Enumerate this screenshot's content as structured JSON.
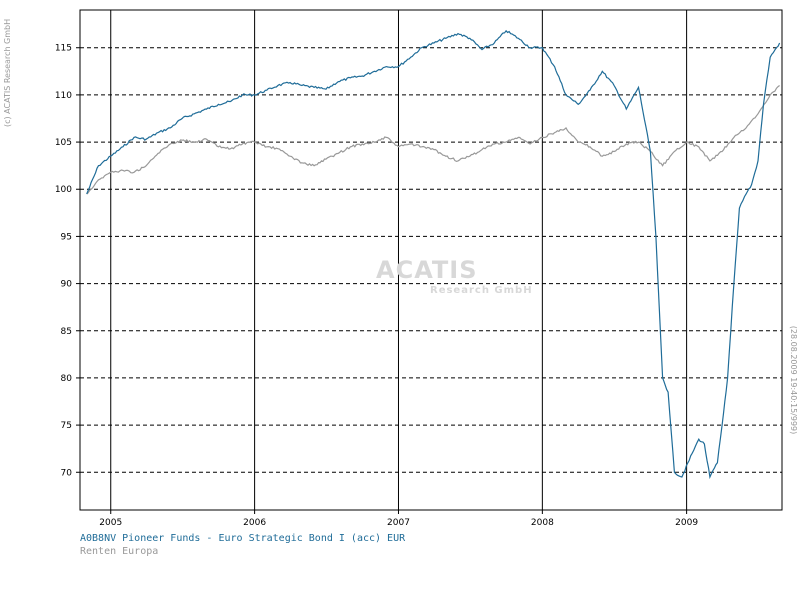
{
  "chart_data": {
    "type": "line",
    "x_axis": {
      "type": "date",
      "range": [
        "2004-10-15",
        "2009-08-31"
      ],
      "ticks": [
        {
          "label": "2005",
          "date": "2005-01-01"
        },
        {
          "label": "2006",
          "date": "2006-01-01"
        },
        {
          "label": "2007",
          "date": "2007-01-01"
        },
        {
          "label": "2008",
          "date": "2008-01-01"
        },
        {
          "label": "2009",
          "date": "2009-01-01"
        }
      ]
    },
    "y_axis": {
      "ylim": [
        66,
        119
      ],
      "ticks": [
        70,
        75,
        80,
        85,
        90,
        95,
        100,
        105,
        110,
        115
      ],
      "tick_labels": [
        "70",
        "75",
        "80",
        "85",
        "90",
        "95",
        "100",
        "105",
        "110",
        "115"
      ],
      "side": "left"
    },
    "grid": {
      "vertical": "solid",
      "horizontal": "dashed"
    },
    "legend_placement": "bottom-left",
    "series": [
      {
        "name": "A0B8NV Pioneer Funds - Euro Strategic Bond I (acc) EUR",
        "color": "#1f6c98",
        "points": [
          [
            "2004-11-01",
            99.5
          ],
          [
            "2004-12-01",
            102.5
          ],
          [
            "2005-01-01",
            103.5
          ],
          [
            "2005-02-01",
            104.5
          ],
          [
            "2005-03-01",
            105.5
          ],
          [
            "2005-04-01",
            105.3
          ],
          [
            "2005-05-01",
            106.0
          ],
          [
            "2005-06-01",
            106.5
          ],
          [
            "2005-07-01",
            107.5
          ],
          [
            "2005-08-01",
            108.0
          ],
          [
            "2005-09-01",
            108.5
          ],
          [
            "2005-10-01",
            109.0
          ],
          [
            "2005-11-01",
            109.3
          ],
          [
            "2005-12-01",
            110.0
          ],
          [
            "2006-01-01",
            110.0
          ],
          [
            "2006-02-01",
            110.5
          ],
          [
            "2006-03-01",
            111.0
          ],
          [
            "2006-04-01",
            111.3
          ],
          [
            "2006-05-01",
            111.0
          ],
          [
            "2006-06-01",
            110.8
          ],
          [
            "2006-07-01",
            110.6
          ],
          [
            "2006-08-01",
            111.4
          ],
          [
            "2006-09-01",
            111.8
          ],
          [
            "2006-10-01",
            112.0
          ],
          [
            "2006-11-01",
            112.5
          ],
          [
            "2006-12-01",
            113.0
          ],
          [
            "2007-01-01",
            113.0
          ],
          [
            "2007-02-01",
            114.0
          ],
          [
            "2007-03-01",
            115.0
          ],
          [
            "2007-04-01",
            115.5
          ],
          [
            "2007-05-01",
            116.0
          ],
          [
            "2007-06-01",
            116.5
          ],
          [
            "2007-07-01",
            116.0
          ],
          [
            "2007-08-01",
            114.8
          ],
          [
            "2007-09-01",
            115.5
          ],
          [
            "2007-10-01",
            116.8
          ],
          [
            "2007-11-01",
            116.0
          ],
          [
            "2007-12-01",
            115.0
          ],
          [
            "2008-01-01",
            115.0
          ],
          [
            "2008-02-01",
            113.0
          ],
          [
            "2008-03-01",
            110.0
          ],
          [
            "2008-04-01",
            109.0
          ],
          [
            "2008-05-01",
            110.5
          ],
          [
            "2008-06-01",
            112.5
          ],
          [
            "2008-07-01",
            111.0
          ],
          [
            "2008-08-01",
            108.5
          ],
          [
            "2008-09-01",
            110.8
          ],
          [
            "2008-10-01",
            104.0
          ],
          [
            "2008-10-15",
            95.0
          ],
          [
            "2008-11-01",
            80.0
          ],
          [
            "2008-11-15",
            78.5
          ],
          [
            "2008-12-01",
            70.0
          ],
          [
            "2008-12-20",
            69.5
          ],
          [
            "2009-01-15",
            72.0
          ],
          [
            "2009-02-01",
            73.5
          ],
          [
            "2009-02-15",
            73.0
          ],
          [
            "2009-03-01",
            69.5
          ],
          [
            "2009-03-20",
            71.0
          ],
          [
            "2009-04-01",
            75.0
          ],
          [
            "2009-04-15",
            80.0
          ],
          [
            "2009-05-01",
            90.0
          ],
          [
            "2009-05-15",
            98.0
          ],
          [
            "2009-06-01",
            99.5
          ],
          [
            "2009-06-15",
            100.5
          ],
          [
            "2009-07-01",
            103.0
          ],
          [
            "2009-07-15",
            109.0
          ],
          [
            "2009-08-01",
            114.0
          ],
          [
            "2009-08-25",
            115.5
          ]
        ]
      },
      {
        "name": "Renten Europa",
        "color": "#999999",
        "points": [
          [
            "2004-11-01",
            99.5
          ],
          [
            "2004-12-01",
            101.0
          ],
          [
            "2005-01-01",
            101.8
          ],
          [
            "2005-02-01",
            102.0
          ],
          [
            "2005-03-01",
            101.8
          ],
          [
            "2005-04-01",
            102.5
          ],
          [
            "2005-05-01",
            103.8
          ],
          [
            "2005-06-01",
            104.8
          ],
          [
            "2005-07-01",
            105.2
          ],
          [
            "2005-08-01",
            105.0
          ],
          [
            "2005-09-01",
            105.3
          ],
          [
            "2005-10-01",
            104.5
          ],
          [
            "2005-11-01",
            104.3
          ],
          [
            "2005-12-01",
            104.8
          ],
          [
            "2006-01-01",
            105.0
          ],
          [
            "2006-02-01",
            104.5
          ],
          [
            "2006-03-01",
            104.3
          ],
          [
            "2006-04-01",
            103.5
          ],
          [
            "2006-05-01",
            102.8
          ],
          [
            "2006-06-01",
            102.5
          ],
          [
            "2006-07-01",
            103.2
          ],
          [
            "2006-08-01",
            103.8
          ],
          [
            "2006-09-01",
            104.5
          ],
          [
            "2006-10-01",
            104.8
          ],
          [
            "2006-11-01",
            105.0
          ],
          [
            "2006-12-01",
            105.5
          ],
          [
            "2007-01-01",
            104.5
          ],
          [
            "2007-02-01",
            104.8
          ],
          [
            "2007-03-01",
            104.5
          ],
          [
            "2007-04-01",
            104.2
          ],
          [
            "2007-05-01",
            103.5
          ],
          [
            "2007-06-01",
            103.0
          ],
          [
            "2007-07-01",
            103.5
          ],
          [
            "2007-08-01",
            104.2
          ],
          [
            "2007-09-01",
            104.8
          ],
          [
            "2007-10-01",
            105.0
          ],
          [
            "2007-11-01",
            105.5
          ],
          [
            "2007-12-01",
            104.8
          ],
          [
            "2008-01-01",
            105.5
          ],
          [
            "2008-02-01",
            106.0
          ],
          [
            "2008-03-01",
            106.5
          ],
          [
            "2008-04-01",
            105.0
          ],
          [
            "2008-05-01",
            104.5
          ],
          [
            "2008-06-01",
            103.5
          ],
          [
            "2008-07-01",
            104.0
          ],
          [
            "2008-08-01",
            104.8
          ],
          [
            "2008-09-01",
            105.0
          ],
          [
            "2008-10-01",
            104.0
          ],
          [
            "2008-11-01",
            102.5
          ],
          [
            "2008-12-01",
            104.0
          ],
          [
            "2009-01-01",
            105.0
          ],
          [
            "2009-02-01",
            104.5
          ],
          [
            "2009-03-01",
            103.0
          ],
          [
            "2009-04-01",
            104.0
          ],
          [
            "2009-05-01",
            105.5
          ],
          [
            "2009-06-01",
            106.5
          ],
          [
            "2009-07-01",
            108.0
          ],
          [
            "2009-08-01",
            110.0
          ],
          [
            "2009-08-25",
            111.0
          ]
        ]
      }
    ]
  },
  "side_text": {
    "copyright": "(c) ACATIS Research GmbH",
    "timestamp": "(28.08.2009 19:40:15/999)"
  },
  "watermark": {
    "line1": "ACATIS",
    "line2": "Research GmbH"
  }
}
